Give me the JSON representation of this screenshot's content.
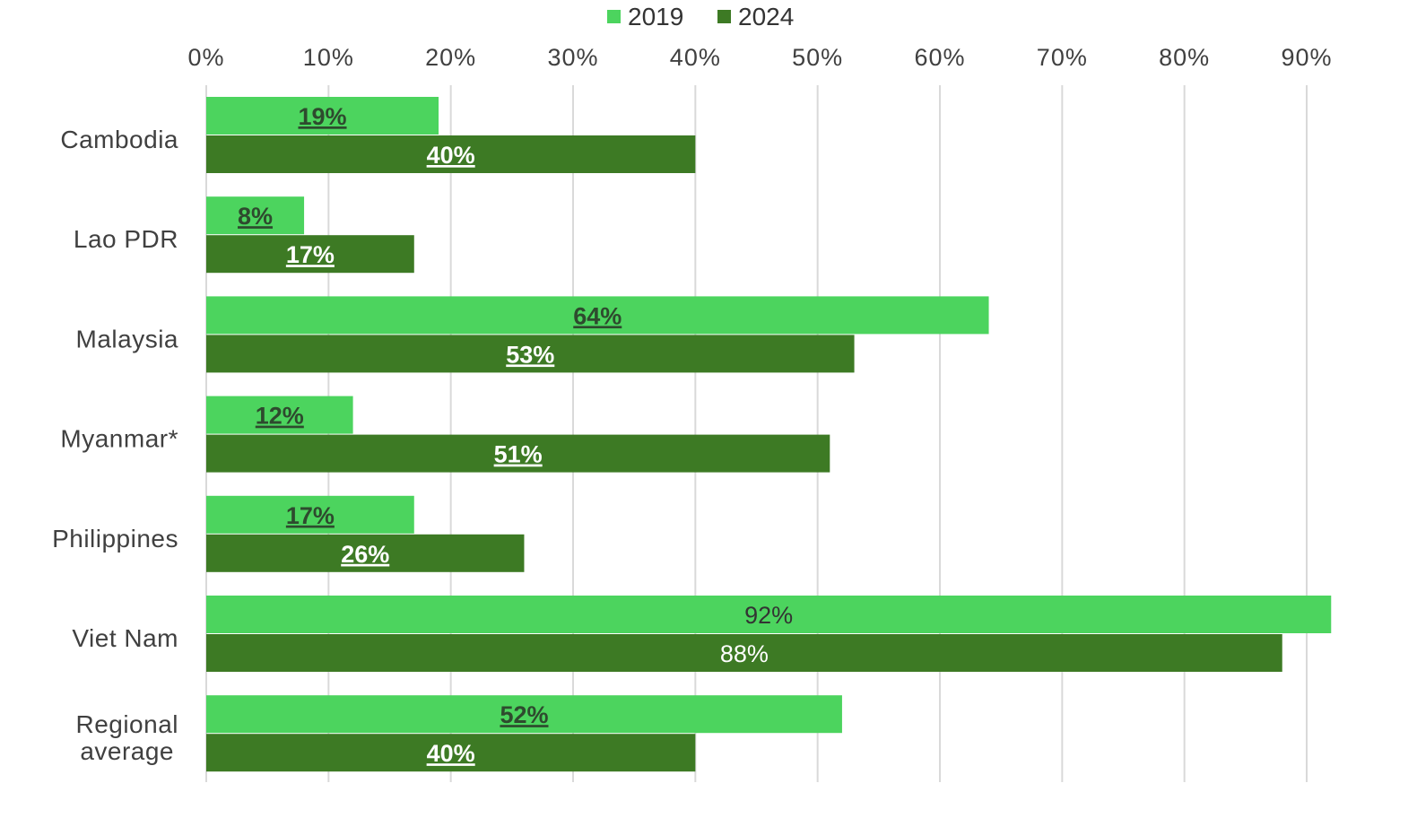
{
  "chart_data": {
    "type": "bar",
    "orientation": "horizontal",
    "categories": [
      "Cambodia",
      "Lao PDR",
      "Malaysia",
      "Myanmar*",
      "Philippines",
      "Viet Nam",
      "Regional average"
    ],
    "category_lines": [
      [
        "Cambodia"
      ],
      [
        "Lao PDR"
      ],
      [
        "Malaysia"
      ],
      [
        "Myanmar*"
      ],
      [
        "Philippines"
      ],
      [
        "Viet Nam"
      ],
      [
        "Regional",
        "average"
      ]
    ],
    "series": [
      {
        "name": "2019",
        "color": "#4cd45e",
        "label_color": "#2e4a2e",
        "values": [
          19,
          8,
          64,
          12,
          17,
          92,
          52
        ],
        "labels": [
          "19%",
          "8%",
          "64%",
          "12%",
          "17%",
          "92%",
          "52%"
        ]
      },
      {
        "name": "2024",
        "color": "#3d7a24",
        "label_color": "#ffffff",
        "values": [
          40,
          17,
          53,
          51,
          26,
          88,
          40
        ],
        "labels": [
          "40%",
          "17%",
          "53%",
          "51%",
          "26%",
          "88%",
          "40%"
        ]
      }
    ],
    "x_axis": {
      "ticks": [
        0,
        10,
        20,
        30,
        40,
        50,
        60,
        70,
        80,
        90
      ],
      "tick_labels": [
        "0%",
        "10%",
        "20%",
        "30%",
        "40%",
        "50%",
        "60%",
        "70%",
        "80%",
        "90%"
      ],
      "position": "top",
      "grid": true
    },
    "plain_label_category": "Viet Nam",
    "legend": {
      "position": "top-center"
    },
    "title": "",
    "xlabel": "",
    "ylabel": "",
    "xlim": [
      0,
      90
    ]
  }
}
